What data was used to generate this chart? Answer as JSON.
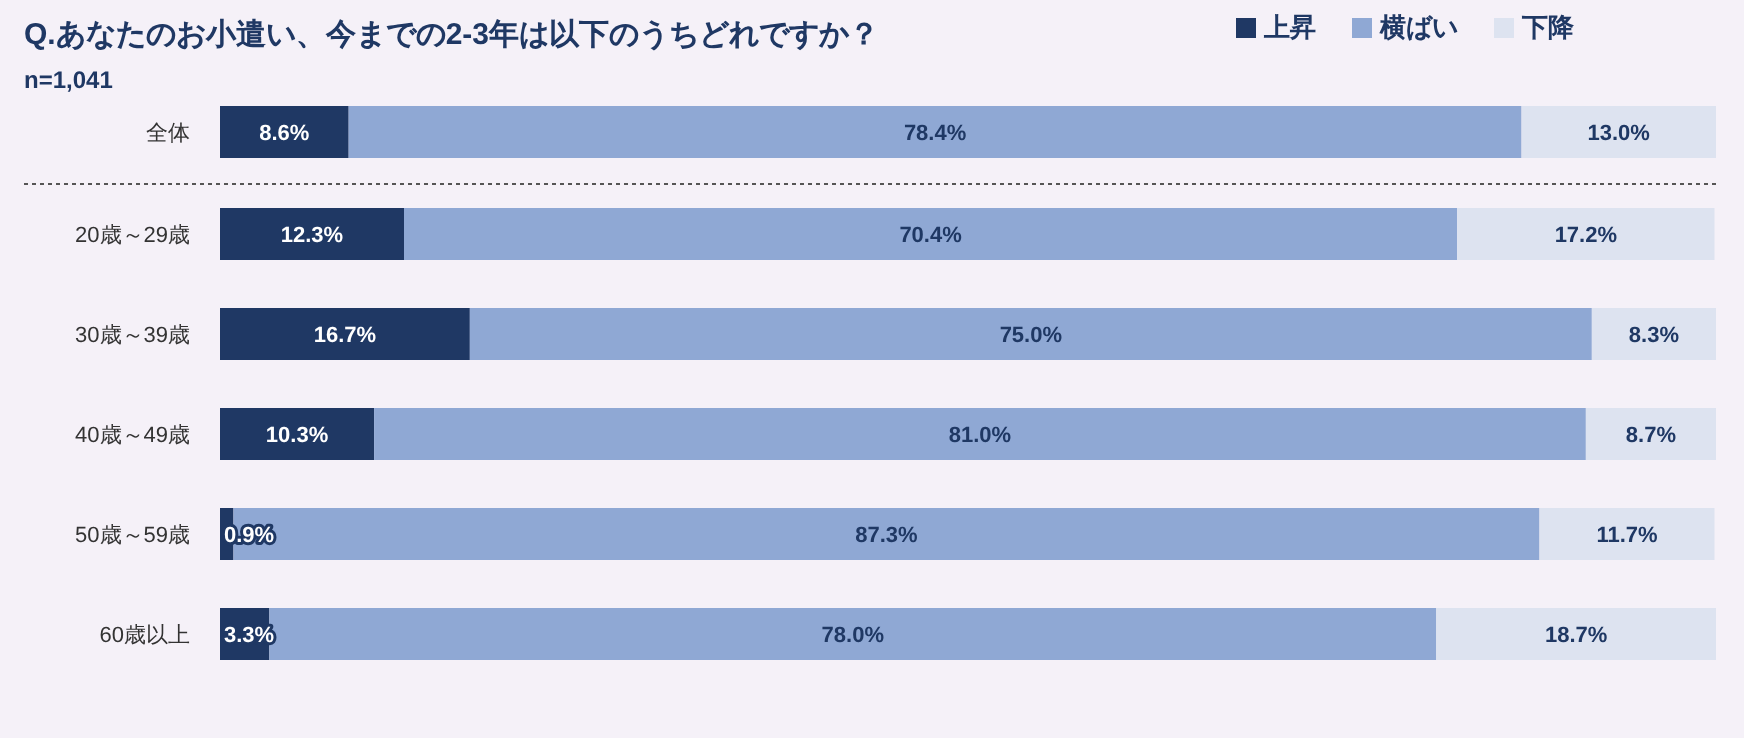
{
  "chart_data": {
    "type": "bar",
    "orientation": "horizontal",
    "stacked": true,
    "title": "Q.あなたのお小遣い、今までの2-3年は以下のうちどれですか？",
    "subtitle": "n=1,041",
    "legend": "top right",
    "categories": [
      "全体",
      "20歳～29歳",
      "30歳～39歳",
      "40歳～49歳",
      "50歳～59歳",
      "60歳以上"
    ],
    "series": [
      {
        "name": "上昇",
        "color": "#1f3864",
        "values": [
          8.6,
          12.3,
          16.7,
          10.3,
          0.9,
          3.3
        ],
        "value_labels": [
          "8.6%",
          "12.3%",
          "16.7%",
          "10.3%",
          "0.9%",
          "3.3%"
        ]
      },
      {
        "name": "横ばい",
        "color": "#8fa8d4",
        "values": [
          78.4,
          70.4,
          75.0,
          81.0,
          87.3,
          78.0
        ],
        "value_labels": [
          "78.4%",
          "70.4%",
          "75.0%",
          "81.0%",
          "87.3%",
          "78.0%"
        ]
      },
      {
        "name": "下降",
        "color": "#dde3f0",
        "values": [
          13.0,
          17.2,
          8.3,
          8.7,
          11.7,
          18.7
        ],
        "value_labels": [
          "13.0%",
          "17.2%",
          "8.3%",
          "8.7%",
          "11.7%",
          "18.7%"
        ]
      }
    ]
  }
}
